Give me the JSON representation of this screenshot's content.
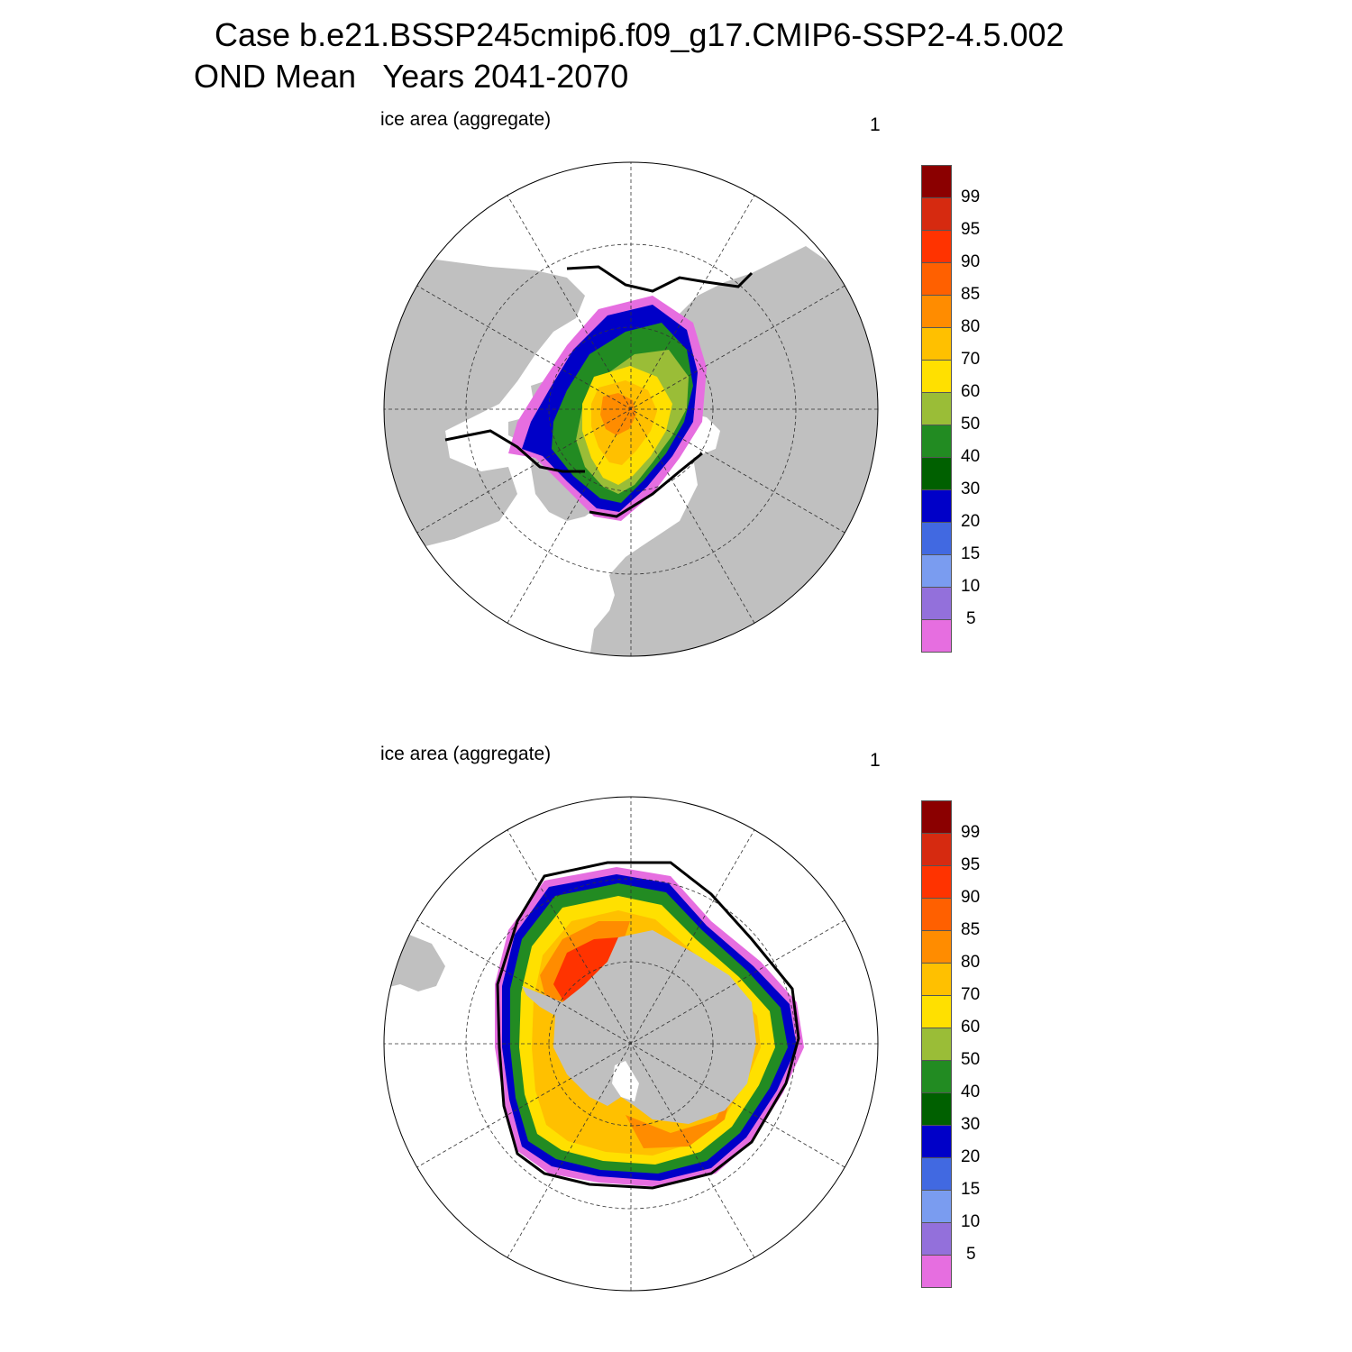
{
  "title": {
    "line1": "Case b.e21.BSSP245cmip6.f09_g17.CMIP6-SSP2-4.5.002",
    "line2": "OND Mean   Years 2041-2070"
  },
  "panels": [
    {
      "label": "ice area  (aggregate)",
      "number": "1",
      "hemisphere": "north"
    },
    {
      "label": "ice area  (aggregate)",
      "number": "1",
      "hemisphere": "south"
    }
  ],
  "colorbar": {
    "labels": [
      "99",
      "95",
      "90",
      "85",
      "80",
      "70",
      "60",
      "50",
      "40",
      "30",
      "20",
      "15",
      "10",
      "5"
    ],
    "colors": [
      "#8b0000",
      "#d62a10",
      "#ff3300",
      "#ff6000",
      "#ff8c00",
      "#ffc000",
      "#ffe000",
      "#9abd37",
      "#228b22",
      "#006000",
      "#0000c8",
      "#4169e1",
      "#7a9cf0",
      "#9370db",
      "#e66ee0"
    ]
  },
  "colors": {
    "land": "#c0c0c0",
    "ocean": "#ffffff",
    "contour": "#000000"
  }
}
